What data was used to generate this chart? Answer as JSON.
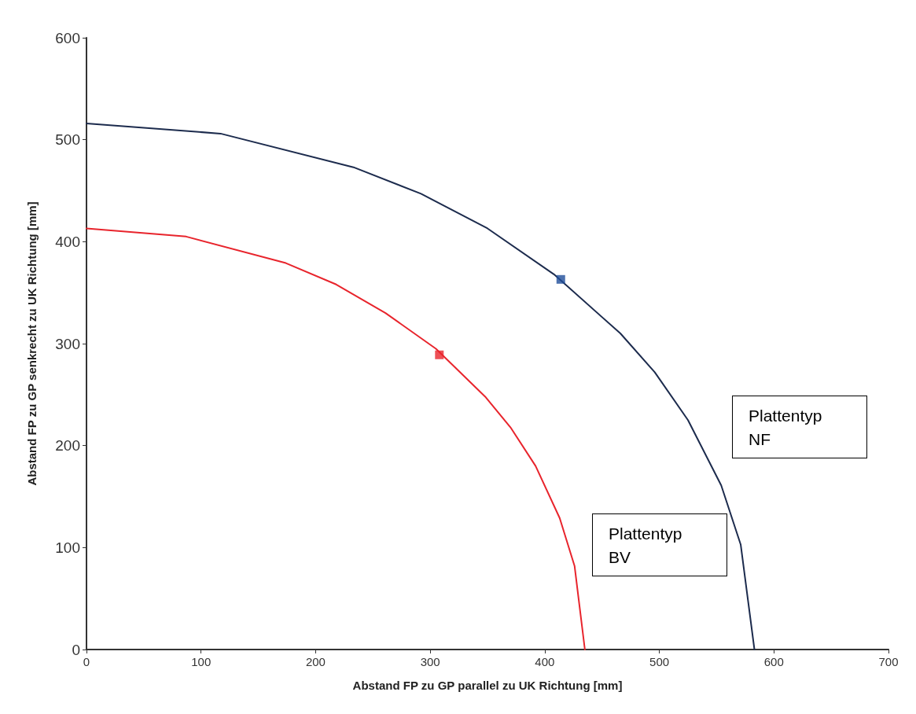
{
  "chart_data": {
    "type": "line",
    "xlabel": "Abstand FP zu GP parallel zu UK Richtung [mm]",
    "ylabel": "Abstand FP zu GP senkrecht zu UK Richtung [mm]",
    "xlim": [
      0,
      700
    ],
    "xticks": [
      0,
      100,
      200,
      300,
      400,
      500,
      600,
      700
    ],
    "ylim": [
      0,
      600
    ],
    "yticks": [
      0,
      100,
      200,
      300,
      400,
      500,
      600
    ],
    "grid": false,
    "legend": false,
    "marker": "none",
    "line_style": "solid",
    "series": [
      {
        "name": "Plattentyp NF",
        "color": "#1c2b4d",
        "x": [
          0,
          117,
          233,
          292,
          350,
          408,
          466,
          496,
          525,
          554,
          571,
          583
        ],
        "values": [
          516,
          506,
          473,
          447,
          413,
          368,
          310,
          272,
          225,
          161,
          103,
          0
        ]
      },
      {
        "name": "Plattentyp BV",
        "color": "#e8242c",
        "x": [
          0,
          87,
          174,
          218,
          261,
          305,
          348,
          370,
          392,
          413,
          426,
          435
        ],
        "values": [
          413,
          405,
          379,
          358,
          330,
          295,
          248,
          218,
          180,
          129,
          82,
          0
        ]
      },
      {
        "type": "scatter",
        "marker": "square",
        "color": "#1f4e9a",
        "x": [
          414
        ],
        "values": [
          363
        ]
      },
      {
        "type": "scatter",
        "marker": "square",
        "color": "#e8242c",
        "x": [
          308
        ],
        "values": [
          289
        ]
      }
    ]
  }
}
